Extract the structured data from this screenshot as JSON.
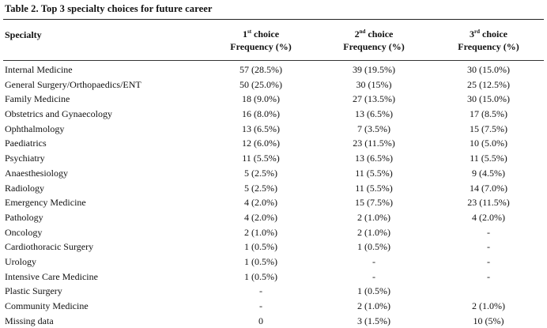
{
  "table": {
    "title": "Table 2. Top 3 specialty choices for future career",
    "headers": {
      "specialty": "Specialty",
      "c1_ord_num": "1",
      "c1_ord_suf": "st",
      "c1_ord_word": " choice",
      "c2_ord_num": "2",
      "c2_ord_suf": "nd",
      "c2_ord_word": " choice",
      "c3_ord_num": "3",
      "c3_ord_suf": "rd",
      "c3_ord_word": " choice",
      "frequency": "Frequency (%)"
    },
    "rows": [
      {
        "specialty": "Internal Medicine",
        "first": "57 (28.5%)",
        "second": "39 (19.5%)",
        "third": "30 (15.0%)"
      },
      {
        "specialty": "General Surgery/Orthopaedics/ENT",
        "first": "50 (25.0%)",
        "second": "30 (15%)",
        "third": "25 (12.5%)"
      },
      {
        "specialty": "Family Medicine",
        "first": "18 (9.0%)",
        "second": "27 (13.5%)",
        "third": "30 (15.0%)"
      },
      {
        "specialty": "Obstetrics and Gynaecology",
        "first": "16 (8.0%)",
        "second": "13 (6.5%)",
        "third": "17 (8.5%)"
      },
      {
        "specialty": "Ophthalmology",
        "first": "13 (6.5%)",
        "second": "7 (3.5%)",
        "third": "15 (7.5%)"
      },
      {
        "specialty": "Paediatrics",
        "first": "12 (6.0%)",
        "second": "23 (11.5%)",
        "third": "10 (5.0%)"
      },
      {
        "specialty": "Psychiatry",
        "first": "11 (5.5%)",
        "second": "13 (6.5%)",
        "third": "11 (5.5%)"
      },
      {
        "specialty": "Anaesthesiology",
        "first": "5 (2.5%)",
        "second": "11 (5.5%)",
        "third": "9 (4.5%)"
      },
      {
        "specialty": "Radiology",
        "first": "5 (2.5%)",
        "second": "11 (5.5%)",
        "third": "14 (7.0%)"
      },
      {
        "specialty": "Emergency Medicine",
        "first": "4 (2.0%)",
        "second": "15 (7.5%)",
        "third": "23 (11.5%)"
      },
      {
        "specialty": "Pathology",
        "first": "4 (2.0%)",
        "second": "2 (1.0%)",
        "third": "4 (2.0%)"
      },
      {
        "specialty": "Oncology",
        "first": "2 (1.0%)",
        "second": "2 (1.0%)",
        "third": "-"
      },
      {
        "specialty": "Cardiothoracic Surgery",
        "first": "1 (0.5%)",
        "second": "1 (0.5%)",
        "third": "-"
      },
      {
        "specialty": "Urology",
        "first": "1 (0.5%)",
        "second": "-",
        "third": "-"
      },
      {
        "specialty": "Intensive Care Medicine",
        "first": "1 (0.5%)",
        "second": "-",
        "third": "-"
      },
      {
        "specialty": "Plastic Surgery",
        "first": "-",
        "second": "1 (0.5%)",
        "third": ""
      },
      {
        "specialty": "Community Medicine",
        "first": "-",
        "second": "2 (1.0%)",
        "third": "2 (1.0%)"
      },
      {
        "specialty": "Missing data",
        "first": "0",
        "second": "3 (1.5%)",
        "third": "10 (5%)"
      }
    ]
  }
}
